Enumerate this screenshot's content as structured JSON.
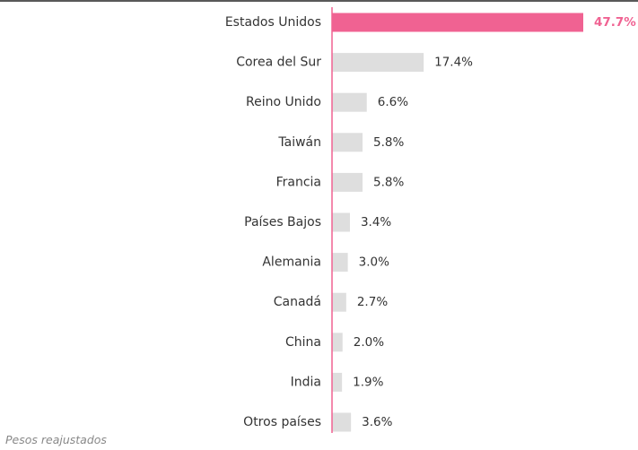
{
  "chart_data": {
    "type": "bar",
    "orientation": "horizontal",
    "categories": [
      "Estados Unidos",
      "Corea del Sur",
      "Reino Unido",
      "Taiwán",
      "Francia",
      "Países Bajos",
      "Alemania",
      "Canadá",
      "China",
      "India",
      "Otros países"
    ],
    "values": [
      47.7,
      17.4,
      6.6,
      5.8,
      5.8,
      3.4,
      3.0,
      2.7,
      2.0,
      1.9,
      3.6
    ],
    "value_labels": [
      "47.7%",
      "17.4%",
      "6.6%",
      "5.8%",
      "5.8%",
      "3.4%",
      "3.0%",
      "2.7%",
      "2.0%",
      "1.9%",
      "3.6%"
    ],
    "highlight_index": 0,
    "colors": {
      "highlight": "#f06292",
      "default": "#dedede",
      "axis": "#f06292",
      "top_rule": "#222222"
    },
    "xlim": [
      0,
      47.7
    ],
    "grid": false,
    "legend": "none",
    "footnote": "Pesos reajustados"
  }
}
